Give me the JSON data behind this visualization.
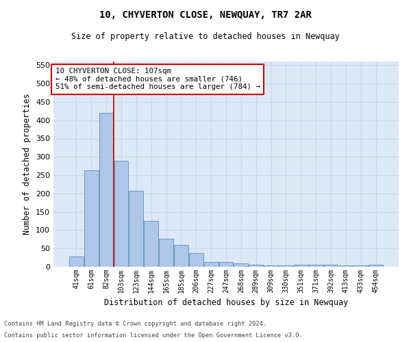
{
  "title": "10, CHYVERTON CLOSE, NEWQUAY, TR7 2AR",
  "subtitle": "Size of property relative to detached houses in Newquay",
  "xlabel": "Distribution of detached houses by size in Newquay",
  "ylabel": "Number of detached properties",
  "footer_line1": "Contains HM Land Registry data © Crown copyright and database right 2024.",
  "footer_line2": "Contains public sector information licensed under the Open Government Licence v3.0.",
  "categories": [
    "41sqm",
    "61sqm",
    "82sqm",
    "103sqm",
    "123sqm",
    "144sqm",
    "165sqm",
    "185sqm",
    "206sqm",
    "227sqm",
    "247sqm",
    "268sqm",
    "289sqm",
    "309sqm",
    "330sqm",
    "351sqm",
    "371sqm",
    "392sqm",
    "413sqm",
    "433sqm",
    "454sqm"
  ],
  "values": [
    28,
    263,
    420,
    289,
    207,
    125,
    76,
    59,
    37,
    14,
    14,
    10,
    6,
    4,
    4,
    6,
    5,
    5,
    3,
    3,
    6
  ],
  "bar_color": "#aec6e8",
  "bar_edge_color": "#5a8fc2",
  "grid_color": "#c8d8e8",
  "bg_color": "#dce8f5",
  "annotation_text": "10 CHYVERTON CLOSE: 107sqm\n← 48% of detached houses are smaller (746)\n51% of semi-detached houses are larger (784) →",
  "annotation_box_color": "#ffffff",
  "annotation_box_edge": "#cc0000",
  "ylim": [
    0,
    560
  ],
  "yticks": [
    0,
    50,
    100,
    150,
    200,
    250,
    300,
    350,
    400,
    450,
    500,
    550
  ]
}
